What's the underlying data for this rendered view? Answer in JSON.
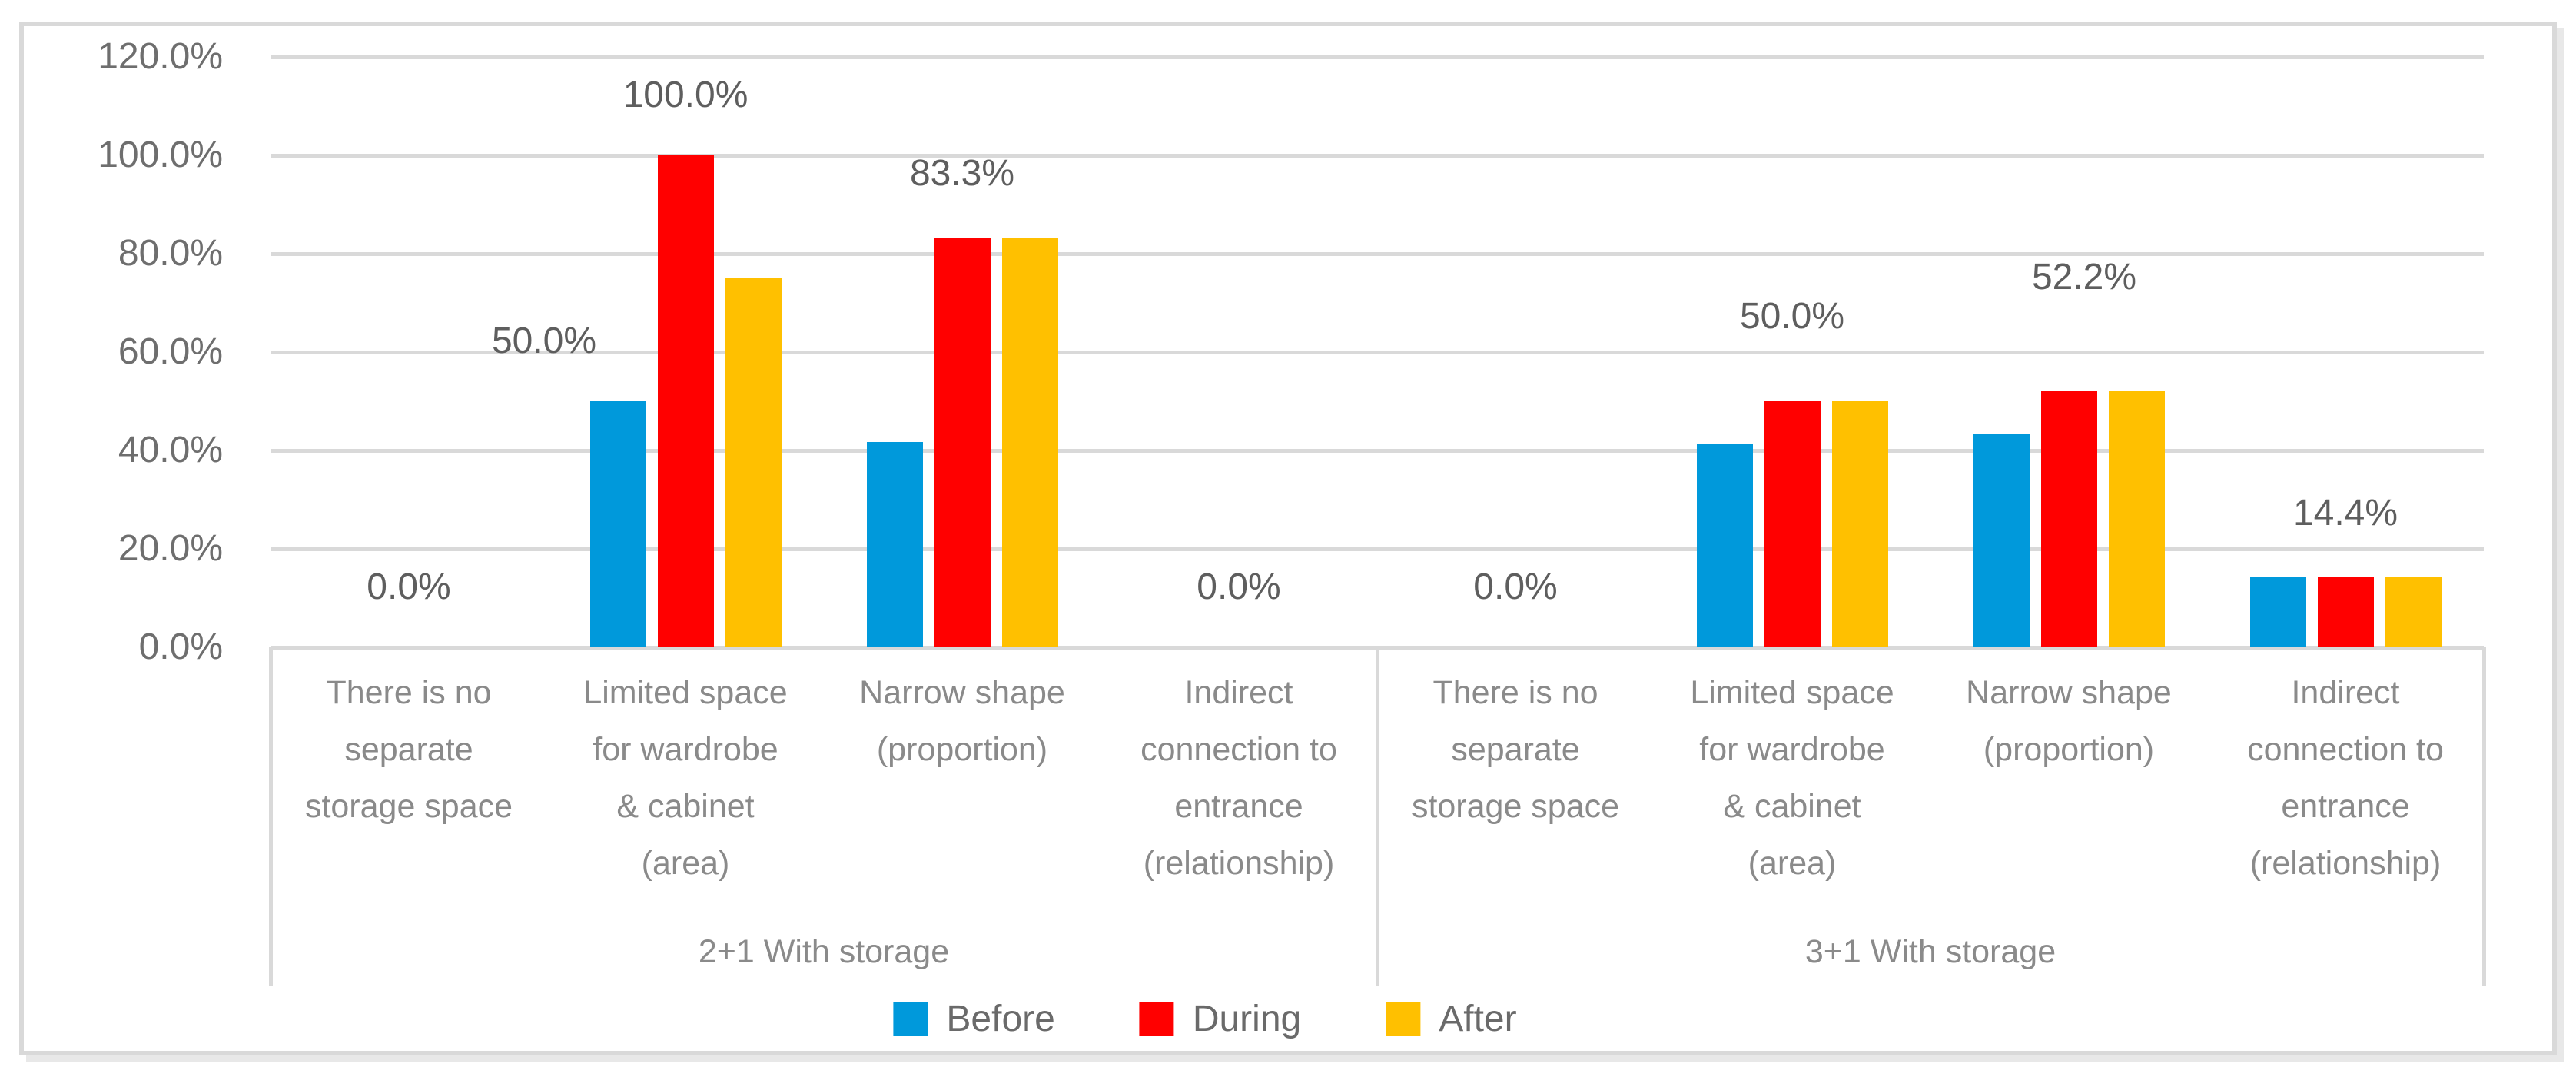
{
  "figure": {
    "kind": "grouped-bar-chart-screenshot",
    "background": "#FFFFFF",
    "frame_border_color": "#D9D9D9"
  },
  "colors": {
    "before": "#0099DB",
    "during": "#FF0000",
    "after": "#FFC000",
    "gridline": "#D9D9D9",
    "tick_text": "#6E6E6E",
    "category_text": "#8A8A8A",
    "data_label_text": "#5E5E5E",
    "legend_text": "#6A6A6A"
  },
  "chart_data": {
    "type": "bar",
    "title": "",
    "xlabel": "",
    "ylabel": "",
    "ylim": [
      0,
      120
    ],
    "grid": "horizontal",
    "legend_position": "bottom",
    "yticks": [
      "120.0%",
      "100.0%",
      "80.0%",
      "60.0%",
      "40.0%",
      "20.0%",
      "0.0%"
    ],
    "ytick_values": [
      120,
      100,
      80,
      60,
      40,
      20,
      0
    ],
    "groups": [
      "2+1 With storage",
      "3+1 With storage"
    ],
    "categories": [
      {
        "label": "There is no separate storage space",
        "lines": [
          "There is no",
          "separate",
          "storage space"
        ]
      },
      {
        "label": "Limited space for wardrobe & cabinet (area)",
        "lines": [
          "Limited space",
          "for wardrobe",
          "& cabinet",
          "(area)"
        ]
      },
      {
        "label": "Narrow shape (proportion)",
        "lines": [
          "Narrow shape",
          "(proportion)"
        ]
      },
      {
        "label": "Indirect connection to entrance (relationship)",
        "lines": [
          "Indirect",
          "connection to",
          "entrance",
          "(relationship)"
        ]
      }
    ],
    "series": [
      {
        "name": "Before",
        "color": "#0099DB",
        "values": [
          [
            0,
            50.0,
            41.7,
            0
          ],
          [
            0,
            41.3,
            43.5,
            14.4
          ]
        ]
      },
      {
        "name": "During",
        "color": "#FF0000",
        "values": [
          [
            0,
            100.0,
            83.3,
            0
          ],
          [
            0,
            50.0,
            52.2,
            14.4
          ]
        ]
      },
      {
        "name": "After",
        "color": "#FFC000",
        "values": [
          [
            0,
            75.0,
            83.3,
            0
          ],
          [
            0,
            50.0,
            52.2,
            14.4
          ]
        ]
      }
    ],
    "data_labels": [
      {
        "group": 0,
        "cat": 0,
        "text": "0.0%"
      },
      {
        "group": 0,
        "cat": 1,
        "text": "50.0%"
      },
      {
        "group": 0,
        "cat": 1,
        "text": "100.0%"
      },
      {
        "group": 0,
        "cat": 2,
        "text": "83.3%"
      },
      {
        "group": 0,
        "cat": 3,
        "text": "0.0%"
      },
      {
        "group": 1,
        "cat": 0,
        "text": "0.0%"
      },
      {
        "group": 1,
        "cat": 1,
        "text": "50.0%"
      },
      {
        "group": 1,
        "cat": 2,
        "text": "52.2%"
      },
      {
        "group": 1,
        "cat": 3,
        "text": "14.4%"
      }
    ]
  }
}
